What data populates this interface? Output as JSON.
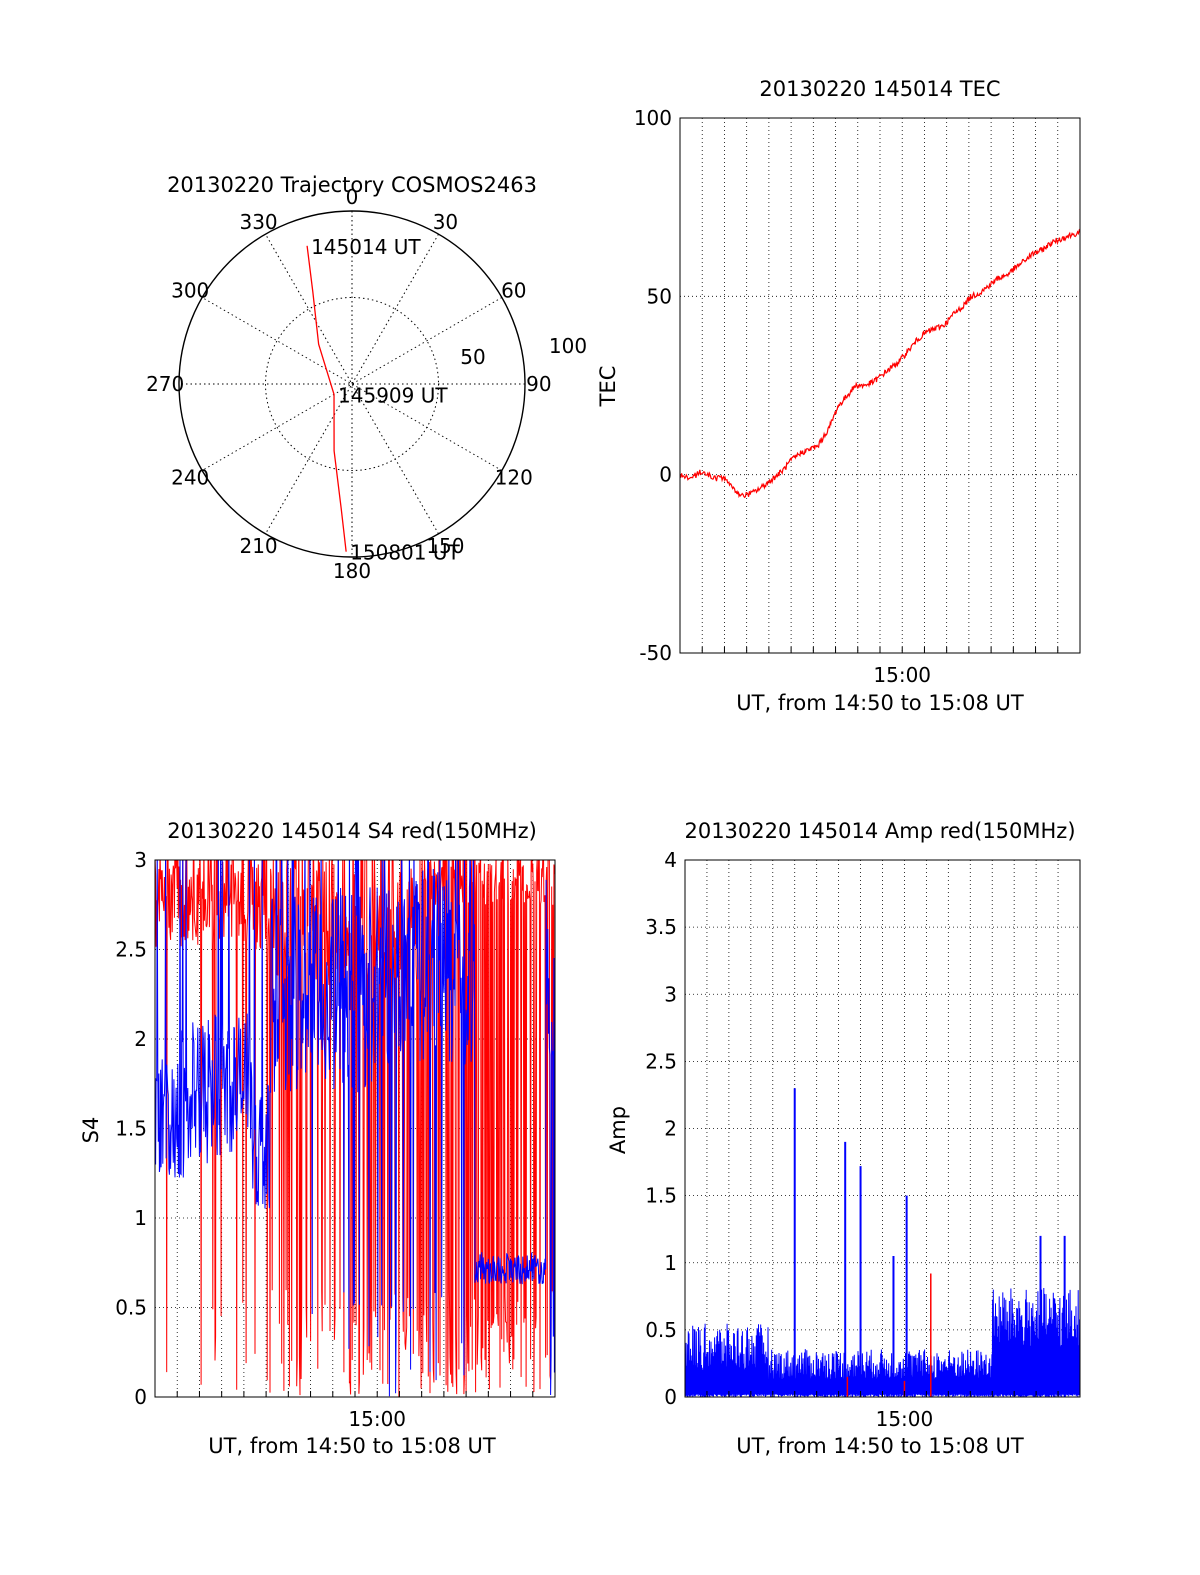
{
  "colors": {
    "trace_red": "#ff0000",
    "trace_blue": "#0000ff",
    "axis": "#000000",
    "grid": "#000000"
  },
  "chart_data": [
    {
      "id": "trajectory",
      "type": "polar",
      "title": "20130220 Trajectory COSMOS2463",
      "azimuth_labels": [
        "0",
        "30",
        "60",
        "90",
        "120",
        "150",
        "180",
        "210",
        "240",
        "270",
        "300",
        "330"
      ],
      "azimuth_values": [
        0,
        30,
        60,
        90,
        120,
        150,
        180,
        210,
        240,
        270,
        300,
        330
      ],
      "radius_labels": [
        "50",
        "100"
      ],
      "radius_values": [
        50,
        100
      ],
      "track": {
        "color": "#ff0000",
        "points": [
          {
            "az": 342,
            "r": 84
          },
          {
            "az": 337,
            "r": 58
          },
          {
            "az": 320,
            "r": 30
          },
          {
            "az": 240,
            "r": 12
          },
          {
            "az": 195,
            "r": 40
          },
          {
            "az": 185,
            "r": 72
          },
          {
            "az": 182,
            "r": 97
          }
        ]
      },
      "annotations": [
        {
          "text": "145014 UT",
          "az": 342,
          "r": 84
        },
        {
          "text": "145909 UT",
          "az": 240,
          "r": 12
        },
        {
          "text": "150801 UT",
          "az": 182,
          "r": 97
        }
      ]
    },
    {
      "id": "tec",
      "type": "line",
      "title": "20130220 145014 TEC",
      "xlabel": "UT, from 14:50 to 15:08 UT",
      "ylabel": "TEC",
      "xlim": [
        0,
        18
      ],
      "ylim": [
        -50,
        100
      ],
      "yticks": [
        -50,
        0,
        50,
        100
      ],
      "xticks": [
        {
          "label": "15:00",
          "value": 10
        }
      ],
      "grid": true,
      "series": [
        {
          "color": "#ff0000",
          "x": [
            0,
            0.5,
            1,
            1.5,
            2,
            2.4,
            2.8,
            3.3,
            3.8,
            4.2,
            4.6,
            5,
            5.4,
            5.8,
            6.2,
            6.7,
            7.1,
            7.5,
            7.9,
            8.3,
            8.7,
            9.1,
            9.5,
            9.9,
            10.3,
            10.7,
            11.1,
            11.5,
            11.9,
            12.3,
            12.7,
            13.1,
            13.5,
            13.9,
            14.3,
            14.7,
            15.1,
            15.5,
            15.9,
            16.3,
            16.7,
            17.1,
            17.5,
            18
          ],
          "values": [
            0,
            -1,
            1,
            -1,
            -1,
            -4,
            -6,
            -5,
            -3,
            -1,
            1,
            4,
            6,
            7,
            8,
            13,
            19,
            22,
            25,
            25,
            26,
            28,
            30,
            32,
            35,
            38,
            40,
            41,
            42,
            45,
            47,
            50,
            51,
            53,
            55,
            56,
            58,
            60,
            62,
            63,
            65,
            66,
            67,
            68
          ]
        }
      ]
    },
    {
      "id": "s4",
      "type": "line",
      "title": "20130220 145014 S4 red(150MHz)",
      "xlabel": "UT, from 14:50 to 15:08 UT",
      "ylabel": "S4",
      "xlim": [
        0,
        18
      ],
      "ylim": [
        0,
        3
      ],
      "yticks": [
        0,
        0.5,
        1,
        1.5,
        2,
        2.5,
        3
      ],
      "ytick_labels": [
        "0",
        "0.5",
        "1",
        "1.5",
        "2",
        "2.5",
        "3"
      ],
      "xticks": [
        {
          "label": "15:00",
          "value": 10
        }
      ],
      "grid": true,
      "series": [
        {
          "color": "#ff0000",
          "description_free": true,
          "segments": [
            {
              "x_start": 0.0,
              "x_end": 5.0,
              "base": 2.8,
              "spread": 0.3,
              "dropouts": 0.08
            },
            {
              "x_start": 5.0,
              "x_end": 12.0,
              "base": 2.7,
              "spread": 0.4,
              "dropouts": 0.25
            },
            {
              "x_start": 12.0,
              "x_end": 18.0,
              "base": 2.9,
              "spread": 0.15,
              "dropouts": 0.35
            }
          ]
        },
        {
          "color": "#0000ff",
          "segments": [
            {
              "x_start": 0.0,
              "x_end": 1.0,
              "base": 1.55,
              "spread": 0.35,
              "dropouts": 0.0
            },
            {
              "x_start": 1.0,
              "x_end": 2.4,
              "base": 1.65,
              "spread": 0.45,
              "dropouts": 0.0
            },
            {
              "x_start": 2.4,
              "x_end": 4.4,
              "base": 1.75,
              "spread": 0.4,
              "dropouts": 0.0
            },
            {
              "x_start": 4.4,
              "x_end": 5.2,
              "base": 1.4,
              "spread": 0.35,
              "dropouts": 0.0
            },
            {
              "x_start": 5.2,
              "x_end": 8.2,
              "base": 2.25,
              "spread": 0.55,
              "dropouts": 0.04
            },
            {
              "x_start": 8.2,
              "x_end": 10.2,
              "base": 2.3,
              "spread": 0.6,
              "dropouts": 0.08
            },
            {
              "x_start": 10.2,
              "x_end": 14.4,
              "base": 2.4,
              "spread": 0.55,
              "dropouts": 0.12
            },
            {
              "x_start": 14.4,
              "x_end": 17.6,
              "base": 0.72,
              "spread": 0.09,
              "dropouts": 0.0
            },
            {
              "x_start": 17.6,
              "x_end": 18.0,
              "base": 2.4,
              "spread": 0.5,
              "dropouts": 0.2
            }
          ]
        }
      ]
    },
    {
      "id": "amp",
      "type": "line",
      "title": "20130220 145014 Amp red(150MHz)",
      "xlabel": "UT, from 14:50 to 15:08 UT",
      "ylabel": "Amp",
      "xlim": [
        0,
        18
      ],
      "ylim": [
        0,
        4
      ],
      "yticks": [
        0,
        0.5,
        1,
        1.5,
        2,
        2.5,
        3,
        3.5,
        4
      ],
      "ytick_labels": [
        "0",
        "0.5",
        "1",
        "1.5",
        "2",
        "2.5",
        "3",
        "3.5",
        "4"
      ],
      "xticks": [
        {
          "label": "15:00",
          "value": 10
        }
      ],
      "grid": true,
      "series": [
        {
          "color": "#0000ff",
          "segments": [
            {
              "x_start": 0.0,
              "x_end": 3.8,
              "base": 0.3,
              "spread": 0.22
            },
            {
              "x_start": 3.8,
              "x_end": 14.0,
              "base": 0.2,
              "spread": 0.14
            },
            {
              "x_start": 14.0,
              "x_end": 18.0,
              "base": 0.5,
              "spread": 0.28
            }
          ],
          "spikes": [
            {
              "x": 5.0,
              "y": 2.3
            },
            {
              "x": 7.3,
              "y": 1.9
            },
            {
              "x": 8.0,
              "y": 1.72
            },
            {
              "x": 9.5,
              "y": 1.05
            },
            {
              "x": 10.1,
              "y": 1.5
            },
            {
              "x": 16.2,
              "y": 1.2
            },
            {
              "x": 17.3,
              "y": 1.2
            }
          ]
        },
        {
          "color": "#ff0000",
          "spikes": [
            {
              "x": 7.4,
              "y": 0.15
            },
            {
              "x": 10.0,
              "y": 0.12
            },
            {
              "x": 11.2,
              "y": 0.92
            }
          ]
        }
      ]
    }
  ]
}
